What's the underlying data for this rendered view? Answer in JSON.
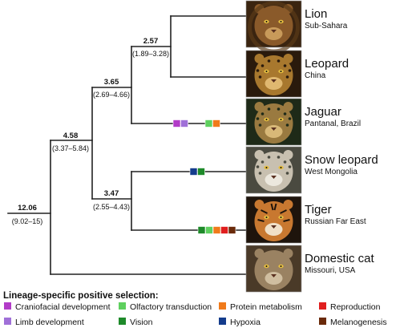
{
  "tree": {
    "nodes": [
      {
        "id": "root",
        "value": "12.06",
        "ci": "(9.02–15)"
      },
      {
        "id": "pantherinae",
        "value": "4.58",
        "ci": "(3.37–5.84)"
      },
      {
        "id": "panthera-a",
        "value": "3.65",
        "ci": "(2.69–4.66)"
      },
      {
        "id": "lion-leopard",
        "value": "2.57",
        "ci": "(1.89–3.28)"
      },
      {
        "id": "snowleopard-tiger",
        "value": "3.47",
        "ci": "(2.55–4.43)"
      }
    ]
  },
  "species": [
    {
      "name": "Lion",
      "location": "Sub-Sahara",
      "photo": "lion-photo",
      "colors": {
        "fur": "#8a5a2a",
        "dark": "#3a2410",
        "light": "#c89a5a"
      }
    },
    {
      "name": "Leopard",
      "location": "China",
      "photo": "leopard-photo",
      "colors": {
        "fur": "#a8782e",
        "dark": "#2a1a0c",
        "light": "#e0b870"
      }
    },
    {
      "name": "Jaguar",
      "location": "Pantanal, Brazil",
      "photo": "jaguar-photo",
      "colors": {
        "fur": "#9a7a40",
        "dark": "#1e2a18",
        "light": "#d8b878"
      }
    },
    {
      "name": "Snow leopard",
      "location": "West Mongolia",
      "photo": "snow-leopard-photo",
      "colors": {
        "fur": "#c8c0b0",
        "dark": "#4a4a40",
        "light": "#ece8de"
      }
    },
    {
      "name": "Tiger",
      "location": "Russian Far East",
      "photo": "tiger-photo",
      "colors": {
        "fur": "#c87830",
        "dark": "#1e140c",
        "light": "#f0e0c8"
      }
    },
    {
      "name": "Domestic cat",
      "location": "Missouri, USA",
      "photo": "domestic-cat-photo",
      "colors": {
        "fur": "#9a8262",
        "dark": "#4a3a28",
        "light": "#d0bea0"
      }
    }
  ],
  "branch_markers": [
    {
      "branch": "Jaguar",
      "categories": [
        "craniofacial",
        "limb",
        "olfactory",
        "protein"
      ]
    },
    {
      "branch": "Snow leopard",
      "categories": [
        "hypoxia",
        "vision"
      ]
    },
    {
      "branch": "Tiger",
      "categories": [
        "vision",
        "olfactory",
        "protein",
        "reproduction",
        "melanogenesis"
      ]
    }
  ],
  "legend": {
    "title": "Lineage-specific positive selection:",
    "items": [
      {
        "id": "craniofacial",
        "label": "Craniofacial development",
        "color": "#b23cc8"
      },
      {
        "id": "olfactory",
        "label": "Olfactory transduction",
        "color": "#5ed05e"
      },
      {
        "id": "protein",
        "label": "Protein metabolism",
        "color": "#f07a1a"
      },
      {
        "id": "reproduction",
        "label": "Reproduction",
        "color": "#e01e1e"
      },
      {
        "id": "limb",
        "label": "Limb development",
        "color": "#a070d8"
      },
      {
        "id": "vision",
        "label": "Vision",
        "color": "#1e8a2a"
      },
      {
        "id": "hypoxia",
        "label": "Hypoxia",
        "color": "#143c8c"
      },
      {
        "id": "melanogenesis",
        "label": "Melanogenesis",
        "color": "#6a2a0a"
      }
    ]
  }
}
